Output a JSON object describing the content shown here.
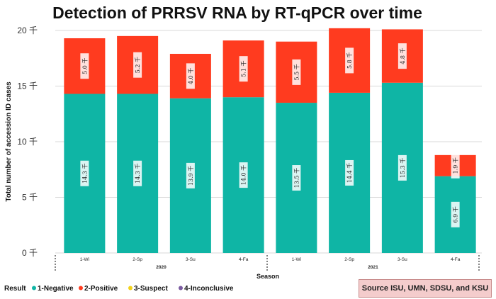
{
  "chart_data": {
    "type": "bar",
    "stacked": true,
    "title": "Detection of PRRSV RNA by RT-qPCR over time",
    "ylabel": "Total number of accession ID cases",
    "xlabel": "Season",
    "ylim": [
      0,
      20000
    ],
    "yticks": [
      {
        "value": 0,
        "label": "0 千"
      },
      {
        "value": 5000,
        "label": "5 千"
      },
      {
        "value": 10000,
        "label": "10 千"
      },
      {
        "value": 15000,
        "label": "15 千"
      },
      {
        "value": 20000,
        "label": "20 千"
      }
    ],
    "categories": [
      "1-Wi",
      "2-Sp",
      "3-Su",
      "4-Fa",
      "1-Wi",
      "2-Sp",
      "3-Su",
      "4-Fa"
    ],
    "groups": [
      {
        "label": "2020",
        "categories": [
          0,
          3
        ]
      },
      {
        "label": "2021",
        "categories": [
          4,
          7
        ]
      }
    ],
    "legend_title": "Result",
    "legend_position": "bottom-left",
    "series": [
      {
        "name": "1-Negative",
        "color": "#0fb5a5",
        "values": [
          14300,
          14300,
          13900,
          14000,
          13500,
          14400,
          15300,
          6900
        ],
        "labels": [
          "14.3 千",
          "14.3 千",
          "13.9 千",
          "14.0 千",
          "13.5 千",
          "14.4 千",
          "15.3 千",
          "6.9 千"
        ]
      },
      {
        "name": "2-Positive",
        "color": "#ff3b1f",
        "values": [
          5000,
          5200,
          4000,
          5100,
          5500,
          5800,
          4800,
          1900
        ],
        "labels": [
          "5.0 千",
          "5.2 千",
          "4.0 千",
          "5.1 千",
          "5.5 千",
          "5.8 千",
          "4.8 千",
          "1.9 千"
        ]
      },
      {
        "name": "3-Suspect",
        "color": "#f2d21b",
        "values": [
          0,
          0,
          0,
          0,
          0,
          0,
          0,
          0
        ]
      },
      {
        "name": "4-Inconclusive",
        "color": "#7a5aa0",
        "values": [
          0,
          0,
          0,
          0,
          0,
          0,
          0,
          0
        ]
      }
    ],
    "source": "Source ISU, UMN, SDSU, and KSU"
  }
}
